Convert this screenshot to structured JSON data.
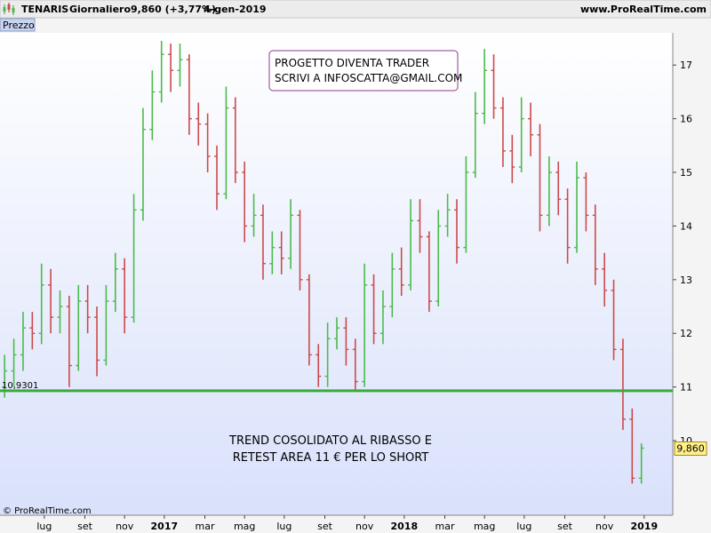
{
  "chart_data": {
    "type": "ohlc",
    "title": "TENARIS",
    "subtitle": "Giornaliero",
    "header_price": "9,860 (+3,77%)",
    "header_date": "4-gen-2019",
    "source": "www.ProRealTime.com",
    "panel_label": "Prezzo",
    "copyright": "© ProRealTime.com",
    "up_color": "#4cba4c",
    "down_color": "#cc4a4a",
    "xlim": [
      -0.5,
      72.4
    ],
    "xticks": [
      {
        "value": 4.3,
        "label": "lug"
      },
      {
        "value": 8.7,
        "label": "set"
      },
      {
        "value": 13.0,
        "label": "nov"
      },
      {
        "value": 17.3,
        "label": "2017"
      },
      {
        "value": 21.7,
        "label": "mar"
      },
      {
        "value": 26.0,
        "label": "mag"
      },
      {
        "value": 30.3,
        "label": "lug"
      },
      {
        "value": 34.7,
        "label": "set"
      },
      {
        "value": 39.0,
        "label": "nov"
      },
      {
        "value": 43.3,
        "label": "2018"
      },
      {
        "value": 47.7,
        "label": "mar"
      },
      {
        "value": 52.0,
        "label": "mag"
      },
      {
        "value": 56.3,
        "label": "lug"
      },
      {
        "value": 60.7,
        "label": "set"
      },
      {
        "value": 65.0,
        "label": "nov"
      },
      {
        "value": 69.3,
        "label": "2019"
      }
    ],
    "ylim": [
      8.61,
      17.6
    ],
    "yticks": [
      10,
      11,
      12,
      13,
      14,
      15,
      16,
      17
    ],
    "open": [
      11.0,
      11.3,
      11.6,
      12.1,
      12.0,
      12.9,
      12.3,
      12.5,
      11.4,
      12.6,
      12.3,
      11.5,
      12.6,
      13.2,
      12.3,
      14.3,
      15.8,
      16.5,
      17.2,
      16.9,
      17.1,
      16.0,
      15.9,
      15.3,
      14.6,
      16.2,
      15.0,
      14.0,
      14.2,
      13.3,
      13.6,
      13.4,
      14.2,
      13.0,
      11.6,
      11.2,
      11.9,
      12.1,
      11.7,
      11.1,
      12.9,
      12.0,
      12.5,
      13.2,
      12.9,
      14.1,
      13.8,
      12.6,
      14.0,
      14.3,
      13.6,
      15.0,
      16.1,
      16.9,
      16.2,
      15.4,
      15.1,
      16.0,
      15.7,
      14.2,
      15.0,
      14.5,
      13.6,
      14.9,
      14.2,
      13.2,
      12.8,
      11.7,
      10.4,
      9.3
    ],
    "high": [
      11.6,
      11.9,
      12.4,
      12.4,
      13.3,
      13.2,
      12.8,
      12.7,
      12.9,
      12.9,
      12.5,
      12.9,
      13.5,
      13.4,
      14.6,
      16.2,
      16.9,
      17.45,
      17.4,
      17.4,
      17.2,
      16.3,
      16.1,
      15.5,
      16.6,
      16.4,
      15.2,
      14.6,
      14.4,
      13.9,
      13.9,
      14.5,
      14.3,
      13.1,
      11.8,
      12.2,
      12.3,
      12.3,
      11.9,
      13.3,
      13.1,
      12.8,
      13.5,
      13.6,
      14.5,
      14.5,
      13.9,
      14.3,
      14.6,
      14.5,
      15.3,
      16.5,
      17.3,
      17.2,
      16.4,
      15.7,
      16.4,
      16.3,
      15.9,
      15.3,
      15.2,
      14.7,
      15.2,
      15.0,
      14.4,
      13.5,
      13.0,
      11.9,
      10.6,
      9.95
    ],
    "low": [
      10.8,
      11.0,
      11.3,
      11.7,
      11.8,
      12.0,
      12.0,
      11.0,
      11.3,
      12.0,
      11.2,
      11.4,
      12.4,
      12.0,
      12.2,
      14.1,
      15.6,
      16.3,
      16.5,
      16.6,
      15.7,
      15.5,
      15.0,
      14.3,
      14.5,
      14.8,
      13.7,
      13.8,
      13.0,
      13.1,
      13.1,
      13.2,
      12.8,
      11.4,
      11.0,
      11.0,
      11.7,
      11.4,
      10.95,
      11.0,
      11.8,
      11.8,
      12.3,
      12.7,
      12.8,
      13.5,
      12.4,
      12.5,
      13.8,
      13.3,
      13.5,
      14.9,
      15.9,
      16.0,
      15.1,
      14.8,
      15.0,
      15.3,
      13.9,
      14.0,
      14.2,
      13.3,
      13.5,
      13.9,
      12.9,
      12.5,
      11.5,
      10.2,
      9.2,
      9.2
    ],
    "close": [
      11.3,
      11.6,
      12.1,
      12.0,
      12.9,
      12.3,
      12.5,
      11.4,
      12.6,
      12.3,
      11.5,
      12.6,
      13.2,
      12.3,
      14.3,
      15.8,
      16.5,
      17.2,
      16.9,
      17.1,
      16.0,
      15.9,
      15.3,
      14.6,
      16.2,
      15.0,
      14.0,
      14.2,
      13.3,
      13.6,
      13.4,
      14.2,
      13.0,
      11.6,
      11.2,
      11.9,
      12.1,
      11.7,
      11.1,
      12.9,
      12.0,
      12.5,
      13.2,
      12.9,
      14.1,
      13.8,
      12.6,
      14.0,
      14.3,
      13.6,
      15.0,
      16.1,
      16.9,
      16.2,
      15.4,
      15.1,
      16.0,
      15.7,
      14.2,
      15.0,
      14.5,
      13.6,
      14.9,
      14.2,
      13.2,
      12.8,
      11.7,
      10.4,
      9.3,
      9.86
    ],
    "hline": {
      "value": 10.9301,
      "label": "10,9301",
      "color": "#3aaa3a"
    },
    "last_price": {
      "value": 9.86,
      "label": "9,860"
    },
    "annotations": [
      {
        "lines": [
          "PROGETTO DIVENTA TRADER",
          "SCRIVI A INFOSCATTA@GMAIL.COM"
        ]
      },
      {
        "lines": [
          "TREND COSOLIDATO AL RIBASSO E",
          "RETEST AREA 11 € PER LO SHORT"
        ]
      }
    ]
  }
}
